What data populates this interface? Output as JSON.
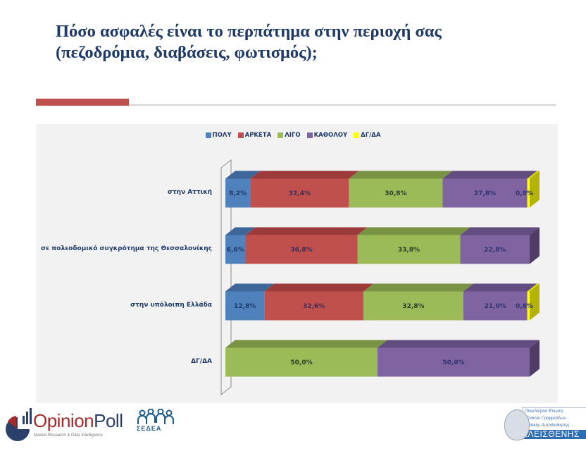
{
  "header": {
    "title_line1": "Πόσο ασφαλές είναι το περπάτημα στην περιοχή σας",
    "title_line2": "(πεζοδρόμια, διαβάσεις, φωτισμός);"
  },
  "colors": {
    "accent": "#c0504d",
    "title": "#1f3a66"
  },
  "chart_data": {
    "type": "bar",
    "orientation": "horizontal",
    "stacked": "percent",
    "style": "3d",
    "title": "Πόσο ασφαλές είναι το περπάτημα στην περιοχή σας (πεζοδρόμια, διαβάσεις, φωτισμός);",
    "xlabel": "",
    "ylabel": "",
    "legend_position": "top",
    "grid": false,
    "xlim": [
      0,
      100
    ],
    "categories": [
      "στην Αττική",
      "σε πολεοδομικό συγκρότημα της Θεσσαλονίκης",
      "στην υπόλοιπη Ελλάδα",
      "ΔΓ/ΔΑ"
    ],
    "series": [
      {
        "name": "ΠΟΛΥ",
        "color": "#4f81bd",
        "top": "#3d6699",
        "side": "#2f5586",
        "text": "#1f3a66",
        "values": [
          8.2,
          6.6,
          12.8,
          0.0
        ],
        "labels": [
          "8,2%",
          "6,6%",
          "12,8%",
          ""
        ]
      },
      {
        "name": "ΑΡΚΕΤΑ",
        "color": "#c0504d",
        "top": "#9c3b39",
        "side": "#8c3331",
        "text": "#3b2d5a",
        "values": [
          32.4,
          36.8,
          32.6,
          0.0
        ],
        "labels": [
          "32,4%",
          "36,8%",
          "32,6%",
          ""
        ]
      },
      {
        "name": "ΛΙΓΟ",
        "color": "#9bbb59",
        "top": "#789343",
        "side": "#6a8439",
        "text": "#2b3f2a",
        "values": [
          30.8,
          33.8,
          32.8,
          50.0
        ],
        "labels": [
          "30,8%",
          "33,8%",
          "32,8%",
          "50,0%"
        ]
      },
      {
        "name": "ΚΑΘΟΛΟΥ",
        "color": "#8064a2",
        "top": "#634d80",
        "side": "#4f3d68",
        "text": "#2b3370",
        "values": [
          27.8,
          22.8,
          21.0,
          50.0
        ],
        "labels": [
          "27,8%",
          "22,8%",
          "21,0%",
          "50,0%"
        ]
      },
      {
        "name": "ΔΓ/ΔΑ",
        "color": "#ffff00",
        "top": "#d6d600",
        "side": "#b4b400",
        "text": "#2b3370",
        "values": [
          0.8,
          0.0,
          0.8,
          0.0
        ],
        "labels": [
          "0,8%",
          "",
          "0,8%",
          ""
        ]
      }
    ]
  },
  "footer": {
    "opinionpoll_name_1": "Opinion",
    "opinionpoll_name_2": "Poll",
    "opinionpoll_tagline": "Market Research & Data Intelligence",
    "sedea_name": "ΣΕΔΕΑ",
    "kleisthenis_line1": "Πανελλήνια Ένωση",
    "kleisthenis_line2": "Γενικών Γραμματέων",
    "kleisthenis_line3": "Τοπικής Αυτοδιοίκησης",
    "kleisthenis_name": "ΚΛΕΙΣΘΕΝΗΣ"
  }
}
